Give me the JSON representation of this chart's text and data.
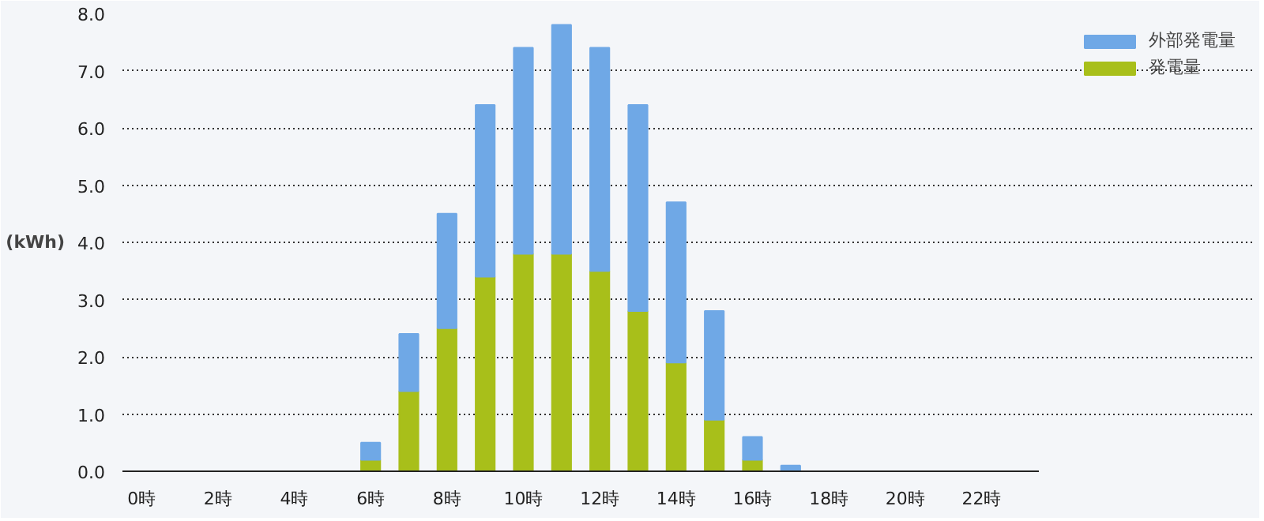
{
  "chart_data": {
    "type": "bar",
    "stacked": true,
    "ylabel": "(kWh)",
    "categories": [
      "0時",
      null,
      "2時",
      null,
      "4時",
      null,
      "6時",
      null,
      "8時",
      null,
      "10時",
      null,
      "12時",
      null,
      "14時",
      null,
      "16時",
      null,
      "18時",
      null,
      "20時",
      null,
      "22時",
      null
    ],
    "series": [
      {
        "name": "発電量",
        "color": "#a8bf1a",
        "values": [
          0,
          0,
          0,
          0,
          0,
          0,
          0.2,
          1.4,
          2.5,
          3.4,
          3.8,
          3.8,
          3.5,
          2.8,
          1.9,
          0.9,
          0.2,
          0,
          0,
          0,
          0,
          0,
          0,
          0
        ]
      },
      {
        "name": "外部発電量",
        "color": "#6fa8e6",
        "values": [
          0,
          0,
          0,
          0,
          0,
          0,
          0.3,
          1.0,
          2.0,
          3.0,
          3.6,
          4.0,
          3.9,
          3.6,
          2.8,
          1.9,
          0.4,
          0.1,
          0,
          0,
          0,
          0,
          0,
          0
        ]
      }
    ],
    "ylim": [
      0,
      8
    ],
    "yticks": [
      {
        "value": 0,
        "label": "0.0"
      },
      {
        "value": 1,
        "label": "1.0"
      },
      {
        "value": 2,
        "label": "2.0"
      },
      {
        "value": 3,
        "label": "3.0"
      },
      {
        "value": 4,
        "label": "4.0"
      },
      {
        "value": 5,
        "label": "5.0"
      },
      {
        "value": 6,
        "label": "6.0"
      },
      {
        "value": 7,
        "label": "7.0"
      },
      {
        "value": 8,
        "label": "8.0"
      }
    ],
    "grid": "y",
    "legend": "top right"
  }
}
